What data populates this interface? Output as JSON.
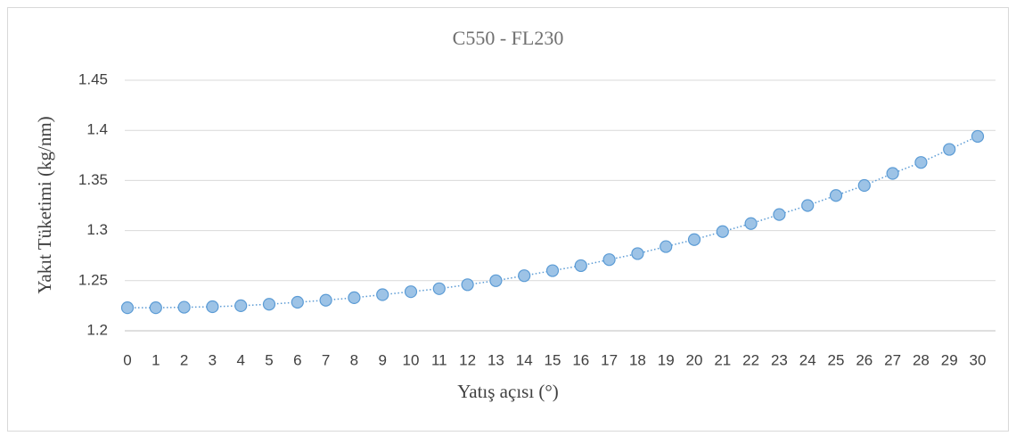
{
  "chart_data": {
    "type": "line",
    "title": "C550 - FL230",
    "x_label": "Yatış açısı (°)",
    "y_label": "Yakıt Tüketimi (kg/nm)",
    "x": [
      0,
      1,
      2,
      3,
      4,
      5,
      6,
      7,
      8,
      9,
      10,
      11,
      12,
      13,
      14,
      15,
      16,
      17,
      18,
      19,
      20,
      21,
      22,
      23,
      24,
      25,
      26,
      27,
      28,
      29,
      30
    ],
    "series": [
      {
        "name": "C550 - FL230",
        "color": "#5b9bd5",
        "marker_fill": "#9dc3e6",
        "values": [
          1.223,
          1.223,
          1.2235,
          1.224,
          1.225,
          1.2265,
          1.2285,
          1.2305,
          1.233,
          1.236,
          1.239,
          1.242,
          1.246,
          1.25,
          1.255,
          1.26,
          1.265,
          1.271,
          1.277,
          1.284,
          1.291,
          1.299,
          1.307,
          1.316,
          1.325,
          1.335,
          1.345,
          1.357,
          1.368,
          1.381,
          1.394
        ]
      }
    ],
    "xlim": [
      0,
      30
    ],
    "xticks": [
      0,
      1,
      2,
      3,
      4,
      5,
      6,
      7,
      8,
      9,
      10,
      11,
      12,
      13,
      14,
      15,
      16,
      17,
      18,
      19,
      20,
      21,
      22,
      23,
      24,
      25,
      26,
      27,
      28,
      29,
      30
    ],
    "ylim": [
      1.2,
      1.45
    ],
    "yticks": [
      1.2,
      1.25,
      1.3,
      1.35,
      1.4,
      1.45
    ],
    "grid": true
  }
}
